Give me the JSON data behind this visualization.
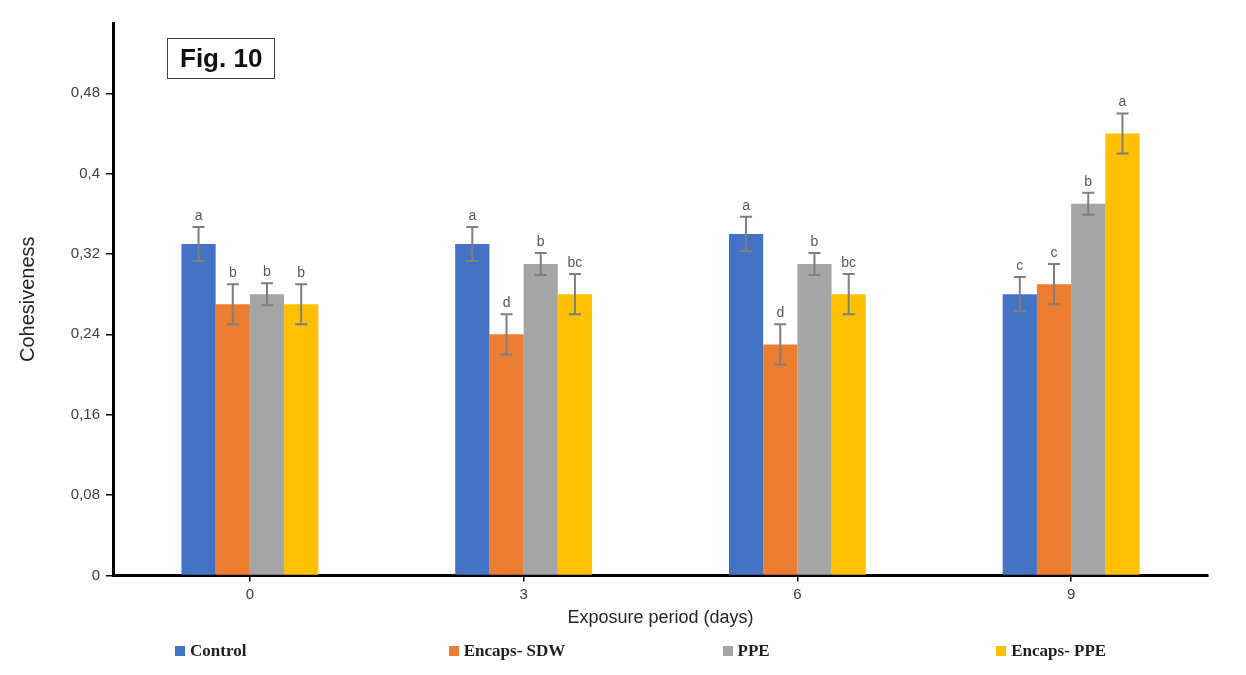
{
  "chart_data": {
    "type": "bar",
    "title": "Fig. 10",
    "xlabel": "Exposure period (days)",
    "ylabel": "Cohesiveness",
    "categories": [
      "0",
      "3",
      "6",
      "9"
    ],
    "series": [
      {
        "name": "Control",
        "color": "#4472c4",
        "values": [
          0.33,
          0.33,
          0.34,
          0.28
        ],
        "errors": [
          0.017,
          0.017,
          0.017,
          0.017
        ],
        "value_labels": [
          "a",
          "a",
          "a",
          "c"
        ]
      },
      {
        "name": "Encaps- SDW",
        "color": "#ed7d31",
        "values": [
          0.27,
          0.24,
          0.23,
          0.29
        ],
        "errors": [
          0.02,
          0.02,
          0.02,
          0.02
        ],
        "value_labels": [
          "b",
          "d",
          "d",
          "c"
        ]
      },
      {
        "name": "PPE",
        "color": "#a5a5a5",
        "values": [
          0.28,
          0.31,
          0.31,
          0.37
        ],
        "errors": [
          0.011,
          0.011,
          0.011,
          0.011
        ],
        "value_labels": [
          "b",
          "b",
          "b",
          "b"
        ]
      },
      {
        "name": "Encaps- PPE",
        "color": "#ffc000",
        "values": [
          0.27,
          0.28,
          0.28,
          0.44
        ],
        "errors": [
          0.02,
          0.02,
          0.02,
          0.02
        ],
        "value_labels": [
          "b",
          "bc",
          "bc",
          "a"
        ]
      }
    ],
    "ylim": [
      0,
      0.55
    ],
    "yticks": [
      0,
      {
        "value": 0.08,
        "label": "0,08"
      },
      {
        "value": 0.16,
        "label": "0,16"
      },
      {
        "value": 0.24,
        "label": "0,24"
      },
      {
        "value": 0.32,
        "label": "0,32"
      },
      {
        "value": 0.4,
        "label": "0,4"
      },
      {
        "value": 0.48,
        "label": "0,48"
      }
    ],
    "legend": "bottom"
  }
}
